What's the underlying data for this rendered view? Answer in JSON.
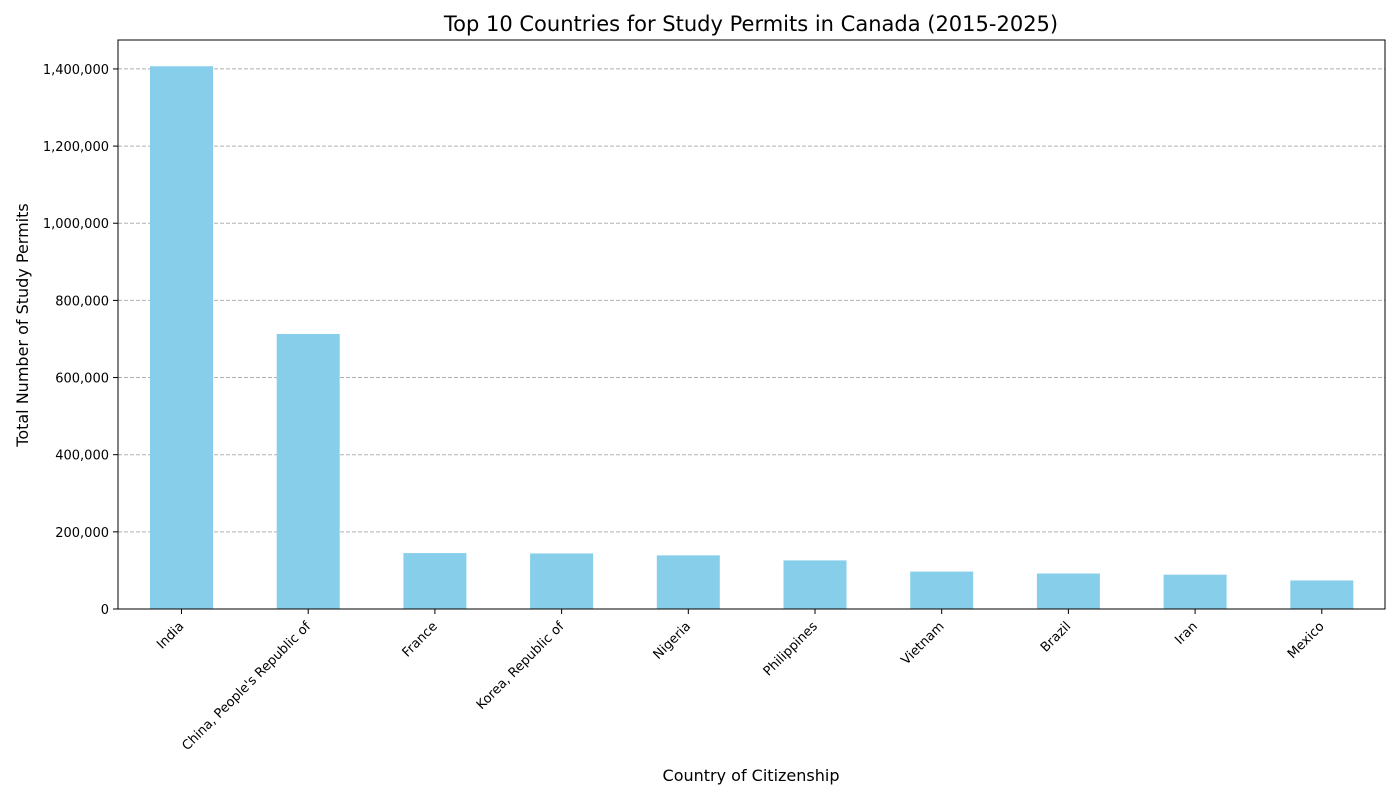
{
  "chart_data": {
    "type": "bar",
    "title": "Top 10 Countries for Study Permits in Canada (2015-2025)",
    "xlabel": "Country of Citizenship",
    "ylabel": "Total Number of Study Permits",
    "categories": [
      "India",
      "China, People's Republic of",
      "France",
      "Korea, Republic of",
      "Nigeria",
      "Philippines",
      "Vietnam",
      "Brazil",
      "Iran",
      "Mexico"
    ],
    "values": [
      1407000,
      713000,
      145000,
      144000,
      139000,
      126000,
      97000,
      92000,
      89000,
      74000
    ],
    "ylim": [
      0,
      1475000
    ],
    "yticks": [
      0,
      200000,
      400000,
      600000,
      800000,
      1000000,
      1200000,
      1400000
    ],
    "ytick_labels": [
      "0",
      "200,000",
      "400,000",
      "600,000",
      "800,000",
      "1,000,000",
      "1,200,000",
      "1,400,000"
    ],
    "grid": "y-dashed",
    "bar_color": "#87ceeb",
    "grid_color": "#b0b0b0"
  }
}
